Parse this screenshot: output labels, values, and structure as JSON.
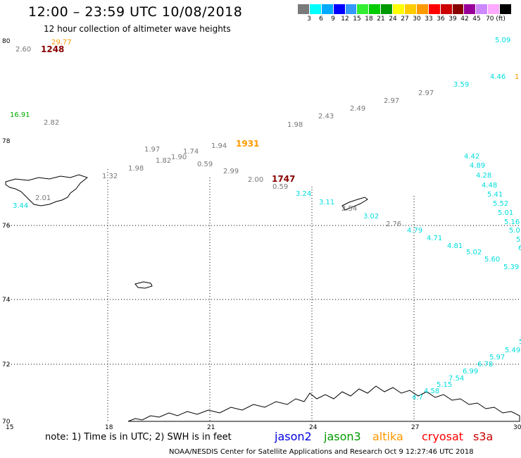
{
  "header": {
    "title": "12:00 – 23:59 UTC 10/08/2018",
    "subtitle": "12 hour collection of altimeter wave heights"
  },
  "legend": {
    "colors": [
      "#7a7a7a",
      "#00ffff",
      "#00aaff",
      "#0000ff",
      "#3399ff",
      "#33ee33",
      "#00cc00",
      "#009900",
      "#ffff00",
      "#ffcc00",
      "#ff9900",
      "#ff0000",
      "#cc0000",
      "#880000",
      "#990099",
      "#cc88ff",
      "#ffaaff",
      "#000000"
    ],
    "ticks": [
      "3",
      "6",
      "9",
      "12",
      "15",
      "18",
      "21",
      "24",
      "27",
      "30",
      "33",
      "36",
      "39",
      "42",
      "45",
      "70 (ft)"
    ]
  },
  "axes": {
    "y_labels": [
      "80",
      "78",
      "76",
      "74",
      "72",
      "70"
    ],
    "x_labels": [
      "15",
      "18",
      "21",
      "24",
      "27",
      "30"
    ]
  },
  "wave_values": [
    {
      "text": "2.60",
      "color": "#777777"
    },
    {
      "text": "29.77",
      "color": "#ff9900"
    },
    {
      "text": "1248",
      "color": "#880000"
    },
    {
      "text": "16.91",
      "color": "#00aa00"
    },
    {
      "text": "2.82",
      "color": "#777777"
    },
    {
      "text": "2.01",
      "color": "#777777"
    },
    {
      "text": "3.44",
      "color": "#00dddd"
    },
    {
      "text": "1.32",
      "color": "#777777"
    },
    {
      "text": "1.97",
      "color": "#777777"
    },
    {
      "text": "1.98",
      "color": "#777777"
    },
    {
      "text": "1.82",
      "color": "#777777"
    },
    {
      "text": "1.90",
      "color": "#777777"
    },
    {
      "text": "1.74",
      "color": "#777777"
    },
    {
      "text": "1.94",
      "color": "#777777"
    },
    {
      "text": "1931",
      "color": "#ff9900"
    },
    {
      "text": "0.59",
      "color": "#777777"
    },
    {
      "text": "2.99",
      "color": "#777777"
    },
    {
      "text": "2.00",
      "color": "#777777"
    },
    {
      "text": "1747",
      "color": "#880000"
    },
    {
      "text": "0.59",
      "color": "#777777"
    },
    {
      "text": "1.98",
      "color": "#777777"
    },
    {
      "text": "2.43",
      "color": "#777777"
    },
    {
      "text": "2.49",
      "color": "#777777"
    },
    {
      "text": "2.97",
      "color": "#777777"
    },
    {
      "text": "2.97",
      "color": "#777777"
    },
    {
      "text": "3.59",
      "color": "#00dddd"
    },
    {
      "text": "4.46",
      "color": "#00dddd"
    },
    {
      "text": "1",
      "color": "#ff9900"
    },
    {
      "text": "5.09",
      "color": "#00dddd"
    },
    {
      "text": "3.24",
      "color": "#00dddd"
    },
    {
      "text": "3.11",
      "color": "#00dddd"
    },
    {
      "text": "2.54",
      "color": "#777777"
    },
    {
      "text": "3.02",
      "color": "#00dddd"
    },
    {
      "text": "2.76",
      "color": "#777777"
    },
    {
      "text": "4.79",
      "color": "#00dddd"
    },
    {
      "text": "4.71",
      "color": "#00dddd"
    },
    {
      "text": "4.81",
      "color": "#00dddd"
    },
    {
      "text": "5.02",
      "color": "#00dddd"
    },
    {
      "text": "5.60",
      "color": "#00dddd"
    },
    {
      "text": "5.39",
      "color": "#00dddd"
    },
    {
      "text": "4.42",
      "color": "#00dddd"
    },
    {
      "text": "4.89",
      "color": "#00dddd"
    },
    {
      "text": "4.28",
      "color": "#00dddd"
    },
    {
      "text": "4.48",
      "color": "#00dddd"
    },
    {
      "text": "5.41",
      "color": "#00dddd"
    },
    {
      "text": "5.52",
      "color": "#00dddd"
    },
    {
      "text": "5.01",
      "color": "#00dddd"
    },
    {
      "text": "5.16",
      "color": "#00dddd"
    },
    {
      "text": "5.0",
      "color": "#00dddd"
    },
    {
      "text": "5.",
      "color": "#00dddd"
    },
    {
      "text": "6",
      "color": "#00dddd"
    },
    {
      "text": "5.49",
      "color": "#00dddd"
    },
    {
      "text": "5.97",
      "color": "#00dddd"
    },
    {
      "text": "6.78",
      "color": "#00dddd"
    },
    {
      "text": "6.99",
      "color": "#00dddd"
    },
    {
      "text": "7.54",
      "color": "#00dddd"
    },
    {
      "text": "5.15",
      "color": "#00dddd"
    },
    {
      "text": "4.58",
      "color": "#00dddd"
    },
    {
      "text": "4.7",
      "color": "#00dddd"
    },
    {
      "text": "5",
      "color": "#00dddd"
    }
  ],
  "footer": {
    "note": "note: 1) Time is in UTC; 2) SWH is in feet",
    "satellites": [
      {
        "name": "jason2",
        "color": "#0000dd"
      },
      {
        "name": "jason3",
        "color": "#009900"
      },
      {
        "name": "altika",
        "color": "#ff9900"
      },
      {
        "name": "cryosat",
        "color": "#ff0000"
      },
      {
        "name": "s3a",
        "color": "#cc0000"
      }
    ],
    "credit": "NOAA/NESDIS Center for Satellite Applications and Research   Oct  9 12:27:46 UTC 2018"
  }
}
